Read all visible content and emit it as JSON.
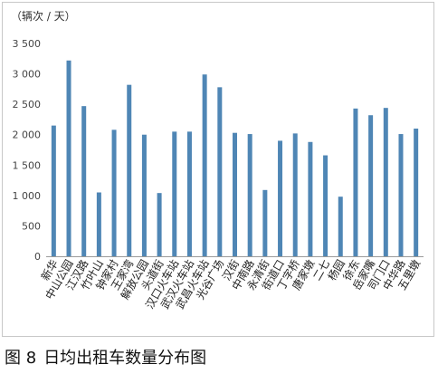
{
  "figure": {
    "number": "图 8",
    "title": "日均出租车数量分布图",
    "unit_label": "（辆次 / 天）"
  },
  "chart_data": {
    "type": "bar",
    "categories": [
      "新华",
      "中山公园",
      "江汉路",
      "竹叶山",
      "钟家村",
      "王家湾",
      "解放公园",
      "头道街",
      "汉口火车站",
      "武汉火车站",
      "武昌火车站",
      "光谷广场",
      "汉街",
      "中南路",
      "永清街",
      "街道口",
      "丁字桥",
      "唐家墩",
      "二七",
      "杨园",
      "徐东",
      "岳家嘴",
      "司门口",
      "中华路",
      "五里墩"
    ],
    "values": [
      2150,
      3220,
      2470,
      1050,
      2080,
      2820,
      2000,
      1040,
      2050,
      2050,
      2990,
      2780,
      2030,
      2010,
      1090,
      1900,
      2020,
      1880,
      1660,
      980,
      2430,
      2320,
      2440,
      2010,
      2100
    ],
    "ylim": [
      0,
      3500
    ],
    "yticks": [
      0,
      500,
      1000,
      1500,
      2000,
      2500,
      3000,
      3500
    ],
    "ytick_labels": [
      "0",
      "500",
      "1 000",
      "1 500",
      "2 000",
      "2 500",
      "3 000",
      "3 500"
    ],
    "grid": false,
    "legend": false,
    "bar_color": "#4f86b5"
  }
}
